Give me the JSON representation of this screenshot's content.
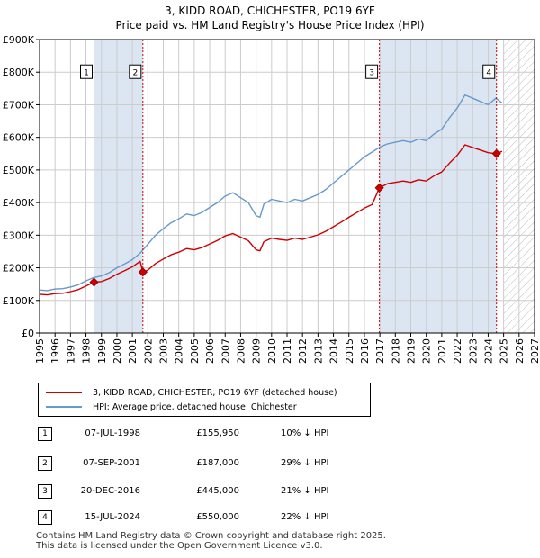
{
  "title": "3, KIDD ROAD, CHICHESTER, PO19 6YF",
  "subtitle": "Price paid vs. HM Land Registry's House Price Index (HPI)",
  "colors": {
    "price": "#cc0000",
    "hpi": "#6699cc",
    "shade": "#dce6f2",
    "grid": "#cccccc",
    "marker_line": "#cc0000"
  },
  "legend": {
    "price_label": "3, KIDD ROAD, CHICHESTER, PO19 6YF (detached house)",
    "hpi_label": "HPI: Average price, detached house, Chichester"
  },
  "transactions": [
    {
      "num": "1",
      "date": "07-JUL-1998",
      "price": "£155,950",
      "hpi_diff": "10% ↓ HPI"
    },
    {
      "num": "2",
      "date": "07-SEP-2001",
      "price": "£187,000",
      "hpi_diff": "29% ↓ HPI"
    },
    {
      "num": "3",
      "date": "20-DEC-2016",
      "price": "£445,000",
      "hpi_diff": "21% ↓ HPI"
    },
    {
      "num": "4",
      "date": "15-JUL-2024",
      "price": "£550,000",
      "hpi_diff": "22% ↓ HPI"
    }
  ],
  "footer": {
    "line1": "Contains HM Land Registry data © Crown copyright and database right 2025.",
    "line2": "This data is licensed under the Open Government Licence v3.0."
  },
  "chart_data": {
    "type": "line",
    "xlim": [
      1995,
      2027
    ],
    "ylim": [
      0,
      900000
    ],
    "xticks": [
      1995,
      1996,
      1997,
      1998,
      1999,
      2000,
      2001,
      2002,
      2003,
      2004,
      2005,
      2006,
      2007,
      2008,
      2009,
      2010,
      2011,
      2012,
      2013,
      2014,
      2015,
      2016,
      2017,
      2018,
      2019,
      2020,
      2021,
      2022,
      2023,
      2024,
      2025,
      2026,
      2027
    ],
    "yticks": [
      0,
      100000,
      200000,
      300000,
      400000,
      500000,
      600000,
      700000,
      800000,
      900000
    ],
    "ytick_labels": [
      "£0",
      "£100K",
      "£200K",
      "£300K",
      "£400K",
      "£500K",
      "£600K",
      "£700K",
      "£800K",
      "£900K"
    ],
    "grid": true,
    "future_hatch_from": 2025.0,
    "shaded_spans": [
      [
        1998.52,
        2001.68
      ],
      [
        2016.97,
        2024.54
      ]
    ],
    "markers": [
      {
        "label": "1",
        "x": 1998.52,
        "y": 155950
      },
      {
        "label": "2",
        "x": 2001.68,
        "y": 187000
      },
      {
        "label": "3",
        "x": 2016.97,
        "y": 445000
      },
      {
        "label": "4",
        "x": 2024.54,
        "y": 550000
      }
    ],
    "series": [
      {
        "name": "HPI: Average price, detached house, Chichester",
        "x": [
          1995.0,
          1995.5,
          1996.0,
          1996.5,
          1997.0,
          1997.5,
          1998.0,
          1998.5,
          1999.0,
          1999.5,
          2000.0,
          2000.5,
          2001.0,
          2001.5,
          2002.0,
          2002.5,
          2003.0,
          2003.5,
          2004.0,
          2004.5,
          2005.0,
          2005.5,
          2006.0,
          2006.5,
          2007.0,
          2007.5,
          2008.0,
          2008.5,
          2009.0,
          2009.25,
          2009.5,
          2010.0,
          2010.5,
          2011.0,
          2011.5,
          2012.0,
          2012.5,
          2013.0,
          2013.5,
          2014.0,
          2014.5,
          2015.0,
          2015.5,
          2016.0,
          2016.5,
          2017.0,
          2017.5,
          2018.0,
          2018.5,
          2019.0,
          2019.5,
          2020.0,
          2020.5,
          2021.0,
          2021.5,
          2022.0,
          2022.5,
          2023.0,
          2023.5,
          2024.0,
          2024.5,
          2024.9
        ],
        "values": [
          132000,
          130000,
          135000,
          136000,
          141000,
          148000,
          160000,
          170000,
          175000,
          185000,
          200000,
          212000,
          225000,
          245000,
          272000,
          300000,
          320000,
          338000,
          350000,
          365000,
          360000,
          370000,
          385000,
          400000,
          420000,
          430000,
          415000,
          400000,
          360000,
          355000,
          395000,
          410000,
          405000,
          400000,
          410000,
          405000,
          415000,
          425000,
          440000,
          460000,
          480000,
          500000,
          520000,
          540000,
          555000,
          570000,
          580000,
          585000,
          590000,
          585000,
          595000,
          590000,
          610000,
          625000,
          660000,
          690000,
          730000,
          720000,
          710000,
          700000,
          720000,
          705000
        ]
      },
      {
        "name": "3, KIDD ROAD, CHICHESTER, PO19 6YF (detached house)",
        "x": [
          1995.0,
          1995.5,
          1996.0,
          1996.5,
          1997.0,
          1997.5,
          1998.0,
          1998.52,
          1999.0,
          1999.5,
          2000.0,
          2000.5,
          2001.0,
          2001.5,
          2001.68,
          2002.0,
          2002.5,
          2003.0,
          2003.5,
          2004.0,
          2004.5,
          2005.0,
          2005.5,
          2006.0,
          2006.5,
          2007.0,
          2007.5,
          2008.0,
          2008.5,
          2009.0,
          2009.25,
          2009.5,
          2010.0,
          2010.5,
          2011.0,
          2011.5,
          2012.0,
          2012.5,
          2013.0,
          2013.5,
          2014.0,
          2014.5,
          2015.0,
          2015.5,
          2016.0,
          2016.5,
          2016.97,
          2017.5,
          2018.0,
          2018.5,
          2019.0,
          2019.5,
          2020.0,
          2020.5,
          2021.0,
          2021.5,
          2022.0,
          2022.5,
          2023.0,
          2023.5,
          2024.0,
          2024.54,
          2024.9
        ],
        "values": [
          119000,
          117000,
          121000,
          122000,
          127000,
          133000,
          144000,
          155950,
          158000,
          167000,
          180000,
          191000,
          203000,
          220000,
          187000,
          193000,
          213000,
          227000,
          240000,
          248000,
          259000,
          255000,
          262000,
          273000,
          284000,
          298000,
          305000,
          294000,
          283000,
          255000,
          252000,
          280000,
          291000,
          287000,
          284000,
          291000,
          287000,
          294000,
          301000,
          312000,
          326000,
          340000,
          355000,
          369000,
          383000,
          394000,
          445000,
          458000,
          462000,
          466000,
          462000,
          470000,
          466000,
          482000,
          494000,
          521000,
          545000,
          577000,
          569000,
          561000,
          553000,
          550000,
          557000
        ]
      }
    ]
  }
}
